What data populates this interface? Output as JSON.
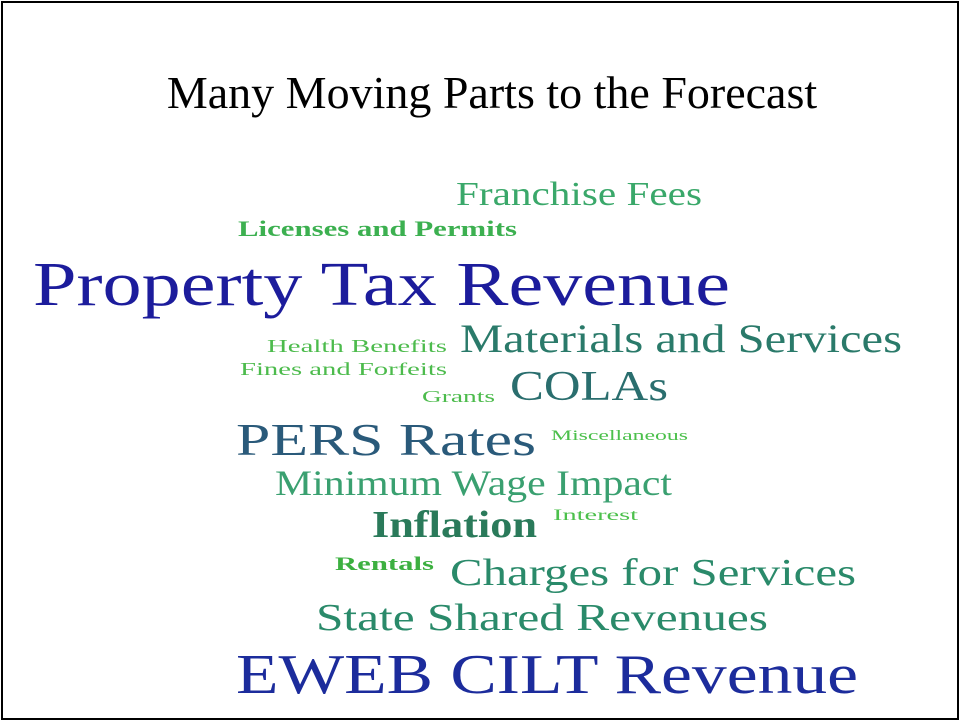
{
  "title": "Many Moving Parts to the Forecast",
  "words": [
    "Franchise Fees",
    "Licenses and Permits",
    "Property Tax Revenue",
    "Health Benefits",
    "Materials and Services",
    "Fines and Forfeits",
    "Grants",
    "COLAs",
    "PERS Rates",
    "Miscellaneous",
    "Minimum Wage Impact",
    "Inflation",
    "Interest",
    "Rentals",
    "Charges for Services",
    "State Shared Revenues",
    "EWEB CILT Revenue"
  ]
}
